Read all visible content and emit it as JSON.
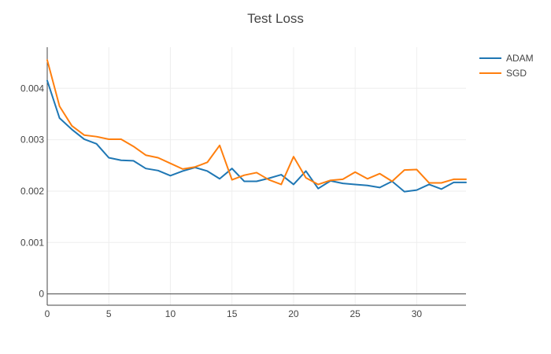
{
  "chart_data": {
    "type": "line",
    "title": "Test Loss",
    "xlabel": "",
    "ylabel": "",
    "xlim": [
      0,
      34
    ],
    "ylim": [
      -0.00022,
      0.0048
    ],
    "x_ticks": [
      0,
      5,
      10,
      15,
      20,
      25,
      30
    ],
    "x_tick_labels": [
      "0",
      "5",
      "10",
      "15",
      "20",
      "25",
      "30"
    ],
    "y_ticks": [
      0,
      0.001,
      0.002,
      0.003,
      0.004
    ],
    "y_tick_labels": [
      "0",
      "0.001",
      "0.002",
      "0.003",
      "0.004"
    ],
    "grid": true,
    "legend_position": "top-right",
    "x": [
      0,
      1,
      2,
      3,
      4,
      5,
      6,
      7,
      8,
      9,
      10,
      11,
      12,
      13,
      14,
      15,
      16,
      17,
      18,
      19,
      20,
      21,
      22,
      23,
      24,
      25,
      26,
      27,
      28,
      29,
      30,
      31,
      32,
      33,
      34
    ],
    "series": [
      {
        "name": "ADAM",
        "color": "#1f77b4",
        "values": [
          0.00415,
          0.00342,
          0.0032,
          0.00301,
          0.00292,
          0.00265,
          0.0026,
          0.00259,
          0.00244,
          0.0024,
          0.0023,
          0.00239,
          0.00246,
          0.00239,
          0.00224,
          0.00244,
          0.00219,
          0.00219,
          0.00225,
          0.00232,
          0.00213,
          0.00239,
          0.00205,
          0.0022,
          0.00215,
          0.00213,
          0.00211,
          0.00207,
          0.00219,
          0.00199,
          0.00202,
          0.00213,
          0.00204,
          0.00217,
          0.00217
        ]
      },
      {
        "name": "SGD",
        "color": "#ff7f0e",
        "values": [
          0.00455,
          0.00365,
          0.00327,
          0.00309,
          0.00306,
          0.00301,
          0.00301,
          0.00287,
          0.0027,
          0.00265,
          0.00254,
          0.00243,
          0.00247,
          0.00256,
          0.00289,
          0.00222,
          0.00231,
          0.00236,
          0.00222,
          0.00213,
          0.00267,
          0.00226,
          0.00213,
          0.00221,
          0.00223,
          0.00237,
          0.00224,
          0.00234,
          0.00219,
          0.00241,
          0.00242,
          0.00216,
          0.00216,
          0.00223,
          0.00223
        ]
      }
    ]
  }
}
